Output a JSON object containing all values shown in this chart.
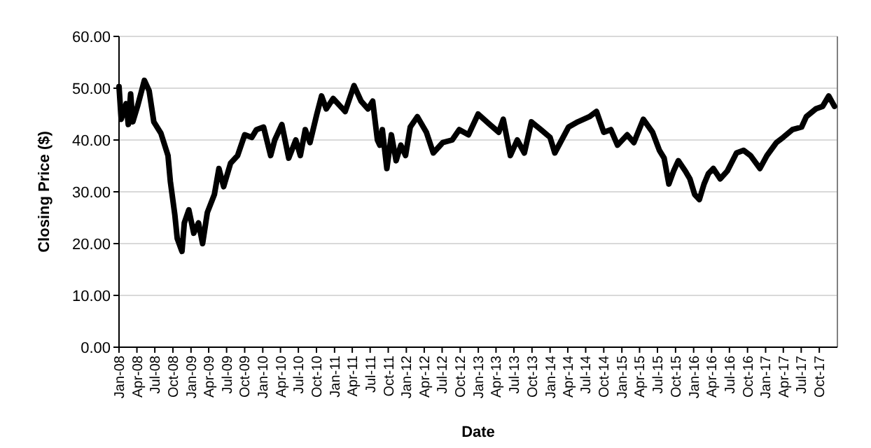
{
  "chart_data": {
    "type": "line",
    "xlabel": "Date",
    "ylabel": "Closing Price ($)",
    "grid": "y",
    "marker": "none",
    "line_style": "solid",
    "xlim": [
      "2008-01-01",
      "2018-01-01"
    ],
    "ylim": [
      0,
      60
    ],
    "yticks": [
      {
        "value": 0,
        "label": "0.00"
      },
      {
        "value": 10,
        "label": "10.00"
      },
      {
        "value": 20,
        "label": "20.00"
      },
      {
        "value": 30,
        "label": "30.00"
      },
      {
        "value": 40,
        "label": "40.00"
      },
      {
        "value": 50,
        "label": "50.00"
      },
      {
        "value": 60,
        "label": "60.00"
      }
    ],
    "xticks": [
      {
        "value": "2008-01-01",
        "label": "Jan-08"
      },
      {
        "value": "2008-04-01",
        "label": "Apr-08"
      },
      {
        "value": "2008-07-01",
        "label": "Jul-08"
      },
      {
        "value": "2008-10-01",
        "label": "Oct-08"
      },
      {
        "value": "2009-01-01",
        "label": "Jan-09"
      },
      {
        "value": "2009-04-01",
        "label": "Apr-09"
      },
      {
        "value": "2009-07-01",
        "label": "Jul-09"
      },
      {
        "value": "2009-10-01",
        "label": "Oct-09"
      },
      {
        "value": "2010-01-01",
        "label": "Jan-10"
      },
      {
        "value": "2010-04-01",
        "label": "Apr-10"
      },
      {
        "value": "2010-07-01",
        "label": "Jul-10"
      },
      {
        "value": "2010-10-01",
        "label": "Oct-10"
      },
      {
        "value": "2011-01-01",
        "label": "Jan-11"
      },
      {
        "value": "2011-04-01",
        "label": "Apr-11"
      },
      {
        "value": "2011-07-01",
        "label": "Jul-11"
      },
      {
        "value": "2011-10-01",
        "label": "Oct-11"
      },
      {
        "value": "2012-01-01",
        "label": "Jan-12"
      },
      {
        "value": "2012-04-01",
        "label": "Apr-12"
      },
      {
        "value": "2012-07-01",
        "label": "Jul-12"
      },
      {
        "value": "2012-10-01",
        "label": "Oct-12"
      },
      {
        "value": "2013-01-01",
        "label": "Jan-13"
      },
      {
        "value": "2013-04-01",
        "label": "Apr-13"
      },
      {
        "value": "2013-07-01",
        "label": "Jul-13"
      },
      {
        "value": "2013-10-01",
        "label": "Oct-13"
      },
      {
        "value": "2014-01-01",
        "label": "Jan-14"
      },
      {
        "value": "2014-04-01",
        "label": "Apr-14"
      },
      {
        "value": "2014-07-01",
        "label": "Jul-14"
      },
      {
        "value": "2014-10-01",
        "label": "Oct-14"
      },
      {
        "value": "2015-01-01",
        "label": "Jan-15"
      },
      {
        "value": "2015-04-01",
        "label": "Apr-15"
      },
      {
        "value": "2015-07-01",
        "label": "Jul-15"
      },
      {
        "value": "2015-10-01",
        "label": "Oct-15"
      },
      {
        "value": "2016-01-01",
        "label": "Jan-16"
      },
      {
        "value": "2016-04-01",
        "label": "Apr-16"
      },
      {
        "value": "2016-07-01",
        "label": "Jul-16"
      },
      {
        "value": "2016-10-01",
        "label": "Oct-16"
      },
      {
        "value": "2017-01-01",
        "label": "Jan-17"
      },
      {
        "value": "2017-04-01",
        "label": "Apr-17"
      },
      {
        "value": "2017-07-01",
        "label": "Jul-17"
      },
      {
        "value": "2017-10-01",
        "label": "Oct-17"
      }
    ],
    "x": [
      "2008-01-01",
      "2008-01-12",
      "2008-02-06",
      "2008-02-17",
      "2008-02-29",
      "2008-03-11",
      "2008-04-04",
      "2008-05-09",
      "2008-06-02",
      "2008-06-26",
      "2008-08-01",
      "2008-09-06",
      "2008-09-18",
      "2008-10-11",
      "2008-10-23",
      "2008-11-16",
      "2008-11-28",
      "2008-12-21",
      "2009-01-15",
      "2009-02-08",
      "2009-03-01",
      "2009-03-25",
      "2009-04-30",
      "2009-05-23",
      "2009-06-16",
      "2009-07-21",
      "2009-08-26",
      "2009-10-01",
      "2009-11-06",
      "2009-11-30",
      "2010-01-05",
      "2010-02-10",
      "2010-03-03",
      "2010-04-08",
      "2010-05-13",
      "2010-06-18",
      "2010-07-11",
      "2010-08-05",
      "2010-08-29",
      "2010-10-03",
      "2010-10-27",
      "2010-11-20",
      "2010-12-25",
      "2011-02-12",
      "2011-02-24",
      "2011-04-10",
      "2011-05-16",
      "2011-06-20",
      "2011-07-14",
      "2011-08-07",
      "2011-08-19",
      "2011-09-01",
      "2011-09-24",
      "2011-10-17",
      "2011-11-10",
      "2011-12-04",
      "2011-12-28",
      "2012-01-21",
      "2012-02-26",
      "2012-04-12",
      "2012-05-17",
      "2012-07-04",
      "2012-08-21",
      "2012-09-26",
      "2012-11-12",
      "2012-12-31",
      "2013-02-28",
      "2013-04-15",
      "2013-05-08",
      "2013-06-13",
      "2013-07-18",
      "2013-08-23",
      "2013-09-28",
      "2013-11-15",
      "2014-01-01",
      "2014-01-25",
      "2014-03-01",
      "2014-04-05",
      "2014-05-22",
      "2014-07-20",
      "2014-08-25",
      "2014-10-01",
      "2014-11-06",
      "2014-12-10",
      "2015-01-28",
      "2015-03-03",
      "2015-04-20",
      "2015-06-06",
      "2015-07-11",
      "2015-08-04",
      "2015-08-28",
      "2015-09-21",
      "2015-10-15",
      "2015-11-20",
      "2015-12-13",
      "2016-01-06",
      "2016-01-30",
      "2016-02-23",
      "2016-03-16",
      "2016-04-10",
      "2016-05-15",
      "2016-06-20",
      "2016-08-06",
      "2016-09-11",
      "2016-10-16",
      "2016-12-03",
      "2017-01-08",
      "2017-02-25",
      "2017-03-31",
      "2017-05-17",
      "2017-07-03",
      "2017-07-27",
      "2017-09-13",
      "2017-10-18",
      "2017-11-18",
      "2017-12-17"
    ],
    "series": [
      {
        "color": "#000000",
        "values": [
          50.3,
          44,
          47,
          43,
          48.9,
          43.5,
          46.5,
          51.5,
          49.5,
          43.5,
          41.3,
          37,
          32,
          25.5,
          21,
          18.5,
          24,
          26.5,
          22,
          24,
          20,
          26,
          29.5,
          34.5,
          31,
          35.5,
          37,
          41,
          40.5,
          42,
          42.5,
          37,
          40,
          43,
          36.5,
          40,
          37,
          42,
          39.5,
          45,
          48.5,
          46,
          48,
          46,
          45.5,
          50.5,
          47.5,
          46,
          47.5,
          40,
          39,
          42,
          34.5,
          41,
          36,
          39,
          37,
          42.5,
          44.5,
          41.5,
          37.5,
          39.5,
          40,
          42,
          41,
          45,
          43,
          41.5,
          44,
          37,
          40,
          37.5,
          43.5,
          42,
          40.5,
          37.5,
          40,
          42.5,
          43.5,
          44.5,
          45.5,
          41.5,
          42,
          39,
          41,
          39.5,
          44,
          41.5,
          38,
          36.5,
          31.5,
          34,
          36,
          34,
          32.5,
          29.5,
          28.5,
          31.5,
          33.5,
          34.5,
          32.5,
          34,
          37.5,
          38,
          37,
          34.5,
          37,
          39.5,
          40.5,
          42,
          42.5,
          44.5,
          46,
          46.5,
          48.5,
          46.5
        ]
      }
    ]
  }
}
